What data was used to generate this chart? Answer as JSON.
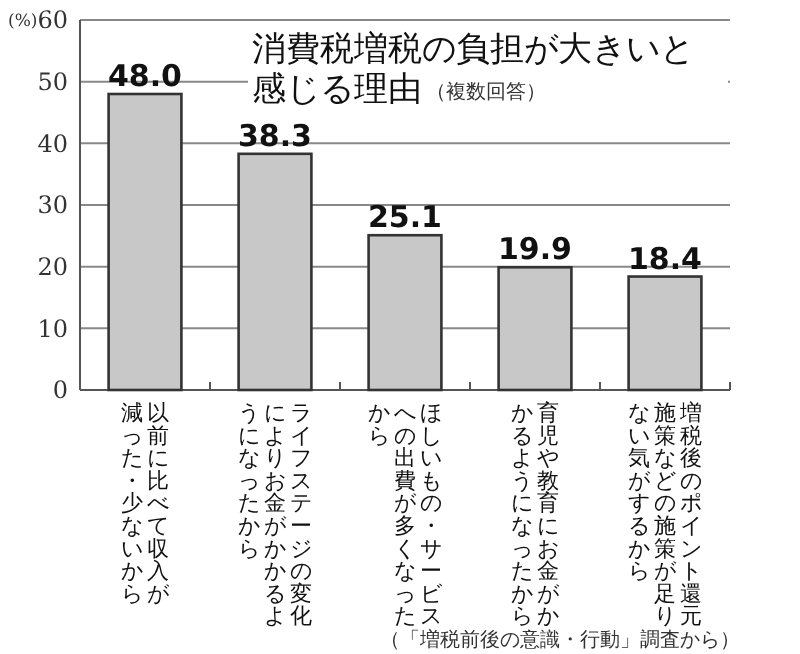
{
  "chart_data": {
    "type": "bar",
    "title": "消費税増税の負担が大きいと感じる理由",
    "subtitle": "（複数回答）",
    "ylabel": "(%)",
    "categories": [
      "以前に比べて収入が減った・少ないから",
      "ライフステージの変化によりお金がかかるようになったから",
      "ほしいもの・サービスへの出費が多くなったから",
      "育児や教育にお金がかかるようになったから",
      "増税後のポイント還元施策などの施策が足りない気がするから"
    ],
    "values": [
      48.0,
      38.3,
      25.1,
      19.9,
      18.4
    ],
    "color": "#c8c8c8",
    "value_labels": [
      "48.0",
      "38.3",
      "25.1",
      "19.9",
      "18.4"
    ],
    "ylim": [
      0,
      60
    ],
    "yticks": [
      0,
      10,
      20,
      30,
      40,
      50,
      60
    ],
    "grid": "y",
    "annotations": [
      "（「増税前後の意識・行動」調査から）"
    ]
  }
}
